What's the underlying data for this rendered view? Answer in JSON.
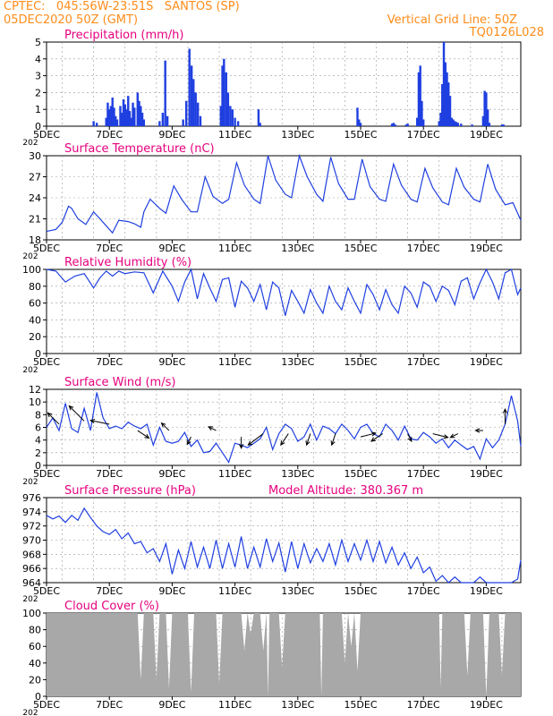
{
  "header": {
    "line1": "CPTEC:   045:56W-23:51S   SANTOS (SP)",
    "line2": "05DEC2020 50Z (GMT)",
    "grid_line": "Vertical Grid Line: 50Z",
    "code": "TQ0126L028"
  },
  "model_altitude": "Model Altitude: 380.367 m",
  "colors": {
    "header": "#ff8c1a",
    "title": "#e6007e",
    "line": "#1f3fe0",
    "wind_arrow": "#000000",
    "cloud": "#a8a8a8",
    "grid": "#999999"
  },
  "x_axis": {
    "range_days": [
      0,
      15.1
    ],
    "tick_positions": [
      0,
      2,
      4,
      6,
      8,
      10,
      12,
      14
    ],
    "tick_labels": [
      "5DEC",
      "7DEC",
      "9DEC",
      "11DEC",
      "13DEC",
      "15DEC",
      "17DEC",
      "19DEC"
    ],
    "cut_label": "202"
  },
  "chart_data": [
    {
      "type": "bar",
      "title": "Precipitation (mm/h)",
      "ylim": [
        0,
        5
      ],
      "yticks": [
        "0",
        "1",
        "2",
        "3",
        "4",
        "5"
      ],
      "events": [
        {
          "x": 1.5,
          "v": 0.3
        },
        {
          "x": 1.6,
          "v": 0.2
        },
        {
          "x": 1.9,
          "v": 0.5
        },
        {
          "x": 1.95,
          "v": 1.4
        },
        {
          "x": 2.0,
          "v": 1.0
        },
        {
          "x": 2.05,
          "v": 1.2
        },
        {
          "x": 2.1,
          "v": 1.7
        },
        {
          "x": 2.15,
          "v": 1.1
        },
        {
          "x": 2.2,
          "v": 0.6
        },
        {
          "x": 2.25,
          "v": 0.4
        },
        {
          "x": 2.35,
          "v": 1.2
        },
        {
          "x": 2.4,
          "v": 0.8
        },
        {
          "x": 2.45,
          "v": 1.6
        },
        {
          "x": 2.5,
          "v": 1.3
        },
        {
          "x": 2.55,
          "v": 1.0
        },
        {
          "x": 2.6,
          "v": 1.8
        },
        {
          "x": 2.65,
          "v": 0.9
        },
        {
          "x": 2.7,
          "v": 0.5
        },
        {
          "x": 2.75,
          "v": 1.4
        },
        {
          "x": 2.8,
          "v": 1.1
        },
        {
          "x": 2.9,
          "v": 2.0
        },
        {
          "x": 2.95,
          "v": 1.5
        },
        {
          "x": 3.0,
          "v": 1.2
        },
        {
          "x": 3.05,
          "v": 0.8
        },
        {
          "x": 3.1,
          "v": 0.4
        },
        {
          "x": 3.6,
          "v": 0.3
        },
        {
          "x": 3.7,
          "v": 0.8
        },
        {
          "x": 3.78,
          "v": 3.9
        },
        {
          "x": 3.85,
          "v": 0.6
        },
        {
          "x": 4.35,
          "v": 0.4
        },
        {
          "x": 4.45,
          "v": 1.5
        },
        {
          "x": 4.55,
          "v": 4.6
        },
        {
          "x": 4.62,
          "v": 3.6
        },
        {
          "x": 4.68,
          "v": 2.8
        },
        {
          "x": 4.75,
          "v": 2.0
        },
        {
          "x": 4.82,
          "v": 1.4
        },
        {
          "x": 4.9,
          "v": 0.6
        },
        {
          "x": 5.55,
          "v": 1.2
        },
        {
          "x": 5.6,
          "v": 3.6
        },
        {
          "x": 5.65,
          "v": 4.0
        },
        {
          "x": 5.72,
          "v": 3.2
        },
        {
          "x": 5.78,
          "v": 2.0
        },
        {
          "x": 5.85,
          "v": 1.2
        },
        {
          "x": 5.92,
          "v": 1.0
        },
        {
          "x": 6.0,
          "v": 0.5
        },
        {
          "x": 6.1,
          "v": 0.3
        },
        {
          "x": 6.75,
          "v": 1.0
        },
        {
          "x": 6.8,
          "v": 0.2
        },
        {
          "x": 9.9,
          "v": 1.1
        },
        {
          "x": 9.95,
          "v": 0.4
        },
        {
          "x": 10.0,
          "v": 0.2
        },
        {
          "x": 11.0,
          "v": 0.15
        },
        {
          "x": 11.05,
          "v": 0.2
        },
        {
          "x": 11.1,
          "v": 0.1
        },
        {
          "x": 11.45,
          "v": 0.1
        },
        {
          "x": 11.5,
          "v": 0.15
        },
        {
          "x": 11.8,
          "v": 0.5
        },
        {
          "x": 11.85,
          "v": 3.2
        },
        {
          "x": 11.9,
          "v": 3.6
        },
        {
          "x": 11.95,
          "v": 1.5
        },
        {
          "x": 12.0,
          "v": 0.4
        },
        {
          "x": 12.5,
          "v": 0.3
        },
        {
          "x": 12.55,
          "v": 0.8
        },
        {
          "x": 12.6,
          "v": 2.5
        },
        {
          "x": 12.65,
          "v": 5.0
        },
        {
          "x": 12.7,
          "v": 3.8
        },
        {
          "x": 12.75,
          "v": 3.2
        },
        {
          "x": 12.8,
          "v": 2.6
        },
        {
          "x": 12.85,
          "v": 1.8
        },
        {
          "x": 12.9,
          "v": 0.5
        },
        {
          "x": 12.95,
          "v": 0.4
        },
        {
          "x": 13.0,
          "v": 0.3
        },
        {
          "x": 13.05,
          "v": 0.25
        },
        {
          "x": 13.1,
          "v": 0.2
        },
        {
          "x": 13.2,
          "v": 0.15
        },
        {
          "x": 13.55,
          "v": 0.1
        },
        {
          "x": 13.9,
          "v": 0.6
        },
        {
          "x": 13.95,
          "v": 2.1
        },
        {
          "x": 14.0,
          "v": 2.0
        },
        {
          "x": 14.05,
          "v": 1.0
        },
        {
          "x": 14.1,
          "v": 0.2
        },
        {
          "x": 14.5,
          "v": 0.1
        },
        {
          "x": 14.55,
          "v": 0.1
        }
      ]
    },
    {
      "type": "line",
      "title": "Surface Temperature (nC)",
      "ylim": [
        18,
        30
      ],
      "yticks": [
        "18",
        "21",
        "24",
        "27",
        "30"
      ],
      "x": [
        0,
        0.3,
        0.5,
        0.7,
        0.8,
        1.0,
        1.25,
        1.5,
        1.7,
        1.9,
        2.1,
        2.3,
        2.6,
        2.8,
        3.0,
        3.1,
        3.3,
        3.6,
        3.8,
        4.05,
        4.3,
        4.6,
        4.8,
        5.05,
        5.3,
        5.6,
        5.8,
        6.05,
        6.3,
        6.6,
        6.8,
        7.05,
        7.3,
        7.6,
        7.8,
        8.05,
        8.3,
        8.6,
        8.8,
        9.05,
        9.3,
        9.6,
        9.8,
        10.05,
        10.3,
        10.6,
        10.8,
        11.05,
        11.3,
        11.6,
        11.8,
        12.05,
        12.3,
        12.6,
        12.8,
        13.05,
        13.3,
        13.6,
        13.8,
        14.05,
        14.3,
        14.6,
        14.85,
        15.1
      ],
      "y": [
        19.2,
        19.5,
        20.5,
        22.8,
        22.5,
        21.0,
        20.2,
        22.0,
        21.0,
        20.0,
        19.0,
        20.8,
        20.6,
        20.3,
        19.8,
        22.0,
        23.8,
        22.5,
        21.8,
        25.7,
        23.8,
        22.0,
        22.0,
        27.0,
        24.2,
        23.2,
        23.8,
        29.0,
        25.8,
        23.8,
        23.2,
        30.0,
        26.5,
        24.5,
        24.0,
        30.5,
        27.0,
        24.5,
        23.5,
        29.8,
        26.0,
        23.8,
        23.8,
        29.5,
        25.6,
        23.8,
        23.5,
        28.8,
        25.8,
        23.8,
        23.4,
        28.2,
        25.4,
        23.4,
        23.0,
        28.2,
        25.5,
        23.8,
        23.4,
        28.8,
        25.2,
        23.0,
        23.3,
        20.8
      ]
    },
    {
      "type": "line",
      "title": "Relative Humidity (%)",
      "ylim": [
        0,
        100
      ],
      "yticks": [
        "0",
        "20",
        "40",
        "60",
        "80",
        "100"
      ],
      "x": [
        0,
        0.3,
        0.6,
        0.9,
        1.2,
        1.5,
        1.7,
        1.9,
        2.1,
        2.3,
        2.5,
        2.8,
        3.1,
        3.4,
        3.7,
        4.0,
        4.2,
        4.4,
        4.6,
        4.8,
        5.0,
        5.2,
        5.4,
        5.6,
        5.8,
        6.0,
        6.2,
        6.4,
        6.6,
        6.8,
        7.0,
        7.2,
        7.4,
        7.6,
        7.8,
        8.0,
        8.2,
        8.4,
        8.6,
        8.8,
        9.0,
        9.2,
        9.4,
        9.6,
        9.8,
        10.0,
        10.2,
        10.4,
        10.6,
        10.8,
        11.0,
        11.2,
        11.4,
        11.6,
        11.8,
        12.0,
        12.2,
        12.4,
        12.6,
        12.8,
        13.0,
        13.2,
        13.4,
        13.6,
        13.8,
        14.0,
        14.2,
        14.4,
        14.6,
        14.8,
        15.0,
        15.1
      ],
      "y": [
        100,
        98,
        85,
        92,
        95,
        78,
        90,
        98,
        92,
        98,
        95,
        97,
        96,
        72,
        98,
        80,
        62,
        85,
        100,
        65,
        95,
        78,
        62,
        88,
        90,
        55,
        86,
        78,
        62,
        82,
        52,
        85,
        78,
        45,
        75,
        62,
        48,
        76,
        60,
        48,
        80,
        62,
        52,
        78,
        62,
        48,
        82,
        70,
        52,
        76,
        58,
        48,
        80,
        72,
        55,
        85,
        80,
        62,
        80,
        75,
        58,
        86,
        90,
        65,
        84,
        100,
        85,
        65,
        96,
        100,
        70,
        78
      ]
    },
    {
      "type": "line",
      "title": "Surface Wind (m/s)",
      "ylim": [
        0,
        12
      ],
      "yticks": [
        "0",
        "2",
        "4",
        "6",
        "8",
        "10",
        "12"
      ],
      "x": [
        0,
        0.2,
        0.4,
        0.6,
        0.8,
        1.0,
        1.2,
        1.4,
        1.6,
        1.8,
        2.0,
        2.2,
        2.4,
        2.6,
        2.8,
        3.0,
        3.2,
        3.4,
        3.6,
        3.8,
        4.0,
        4.2,
        4.4,
        4.6,
        4.8,
        5.0,
        5.2,
        5.4,
        5.6,
        5.8,
        6.0,
        6.2,
        6.4,
        6.6,
        6.8,
        7.0,
        7.2,
        7.4,
        7.6,
        7.8,
        8.0,
        8.2,
        8.4,
        8.6,
        8.8,
        9.0,
        9.2,
        9.4,
        9.6,
        9.8,
        10.0,
        10.2,
        10.4,
        10.6,
        10.8,
        11.0,
        11.2,
        11.4,
        11.6,
        11.8,
        12.0,
        12.2,
        12.4,
        12.6,
        12.8,
        13.0,
        13.2,
        13.4,
        13.6,
        13.8,
        14.0,
        14.2,
        14.4,
        14.6,
        14.8,
        15.0,
        15.1
      ],
      "y": [
        6.0,
        7.5,
        5.5,
        9.8,
        5.8,
        5.2,
        9.0,
        5.5,
        11.5,
        7.5,
        5.8,
        6.2,
        5.8,
        6.8,
        6.2,
        5.8,
        6.5,
        3.2,
        6.0,
        3.8,
        3.5,
        3.8,
        5.2,
        3.0,
        4.0,
        2.0,
        2.2,
        3.5,
        2.0,
        0.5,
        3.5,
        3.2,
        2.8,
        3.5,
        4.2,
        6.0,
        2.5,
        5.0,
        6.5,
        5.8,
        3.8,
        4.5,
        6.5,
        4.0,
        6.2,
        5.8,
        5.0,
        6.5,
        5.5,
        4.2,
        6.0,
        6.5,
        5.0,
        4.5,
        6.5,
        5.5,
        4.0,
        6.2,
        4.2,
        4.0,
        5.2,
        4.5,
        3.5,
        4.2,
        2.8,
        4.0,
        3.2,
        2.5,
        3.0,
        1.0,
        4.2,
        2.8,
        4.0,
        6.5,
        11.0,
        7.0,
        3.0
      ]
    },
    {
      "type": "line",
      "title": "Surface Pressure (hPa)",
      "ylim": [
        964,
        976
      ],
      "yticks": [
        "964",
        "966",
        "968",
        "970",
        "972",
        "974",
        "976"
      ],
      "x": [
        0,
        0.2,
        0.4,
        0.6,
        0.8,
        1.0,
        1.2,
        1.4,
        1.6,
        1.8,
        2.0,
        2.2,
        2.4,
        2.6,
        2.8,
        3.0,
        3.2,
        3.4,
        3.6,
        3.8,
        4.0,
        4.2,
        4.4,
        4.6,
        4.8,
        5.0,
        5.2,
        5.4,
        5.6,
        5.8,
        6.0,
        6.2,
        6.4,
        6.6,
        6.8,
        7.0,
        7.2,
        7.4,
        7.6,
        7.8,
        8.0,
        8.2,
        8.4,
        8.6,
        8.8,
        9.0,
        9.2,
        9.4,
        9.6,
        9.8,
        10.0,
        10.2,
        10.4,
        10.6,
        10.8,
        11.0,
        11.2,
        11.4,
        11.6,
        11.8,
        12.0,
        12.2,
        12.4,
        12.6,
        12.8,
        13.0,
        13.2,
        13.4,
        13.6,
        13.8,
        14.0,
        14.2,
        14.4,
        14.6,
        14.8,
        15.0,
        15.1
      ],
      "y": [
        973.5,
        973.0,
        973.4,
        972.5,
        973.5,
        972.8,
        974.5,
        973.2,
        972.0,
        971.2,
        970.8,
        971.5,
        970.2,
        971.0,
        969.5,
        969.8,
        968.2,
        968.8,
        967.0,
        969.5,
        965.2,
        968.6,
        966.0,
        969.8,
        966.2,
        969.0,
        966.0,
        970.0,
        966.0,
        969.5,
        966.2,
        970.5,
        966.0,
        969.0,
        966.2,
        970.2,
        967.0,
        969.6,
        965.5,
        969.8,
        966.0,
        969.5,
        966.8,
        968.8,
        967.0,
        969.5,
        966.5,
        970.0,
        967.0,
        969.5,
        967.2,
        970.0,
        967.0,
        969.8,
        966.8,
        969.0,
        966.5,
        968.2,
        966.0,
        967.6,
        965.4,
        966.2,
        964.2,
        965.0,
        963.6,
        964.8,
        963.8,
        963.0,
        963.4,
        964.8,
        963.2,
        963.2,
        963.0,
        963.0,
        963.6,
        964.5,
        967.2
      ]
    },
    {
      "type": "area",
      "title": "Cloud Cover (%)",
      "ylim": [
        0,
        100
      ],
      "yticks": [
        "0",
        "20",
        "40",
        "60",
        "80",
        "100"
      ],
      "x": [
        0,
        2.9,
        3.0,
        3.1,
        3.4,
        3.5,
        3.6,
        3.8,
        3.9,
        4.0,
        4.5,
        4.6,
        4.7,
        5.4,
        5.5,
        5.6,
        6.2,
        6.3,
        6.4,
        6.5,
        6.6,
        6.8,
        6.9,
        7.0,
        7.05,
        7.1,
        7.4,
        7.5,
        7.6,
        8.7,
        8.75,
        8.8,
        9.4,
        9.5,
        9.6,
        9.7,
        9.8,
        9.9,
        10.0,
        12.5,
        12.55,
        12.6,
        13.3,
        13.4,
        13.5,
        13.9,
        14.0,
        14.1,
        14.4,
        14.5,
        14.6,
        15.1
      ],
      "y": [
        100,
        100,
        20,
        100,
        100,
        20,
        100,
        100,
        10,
        100,
        100,
        5,
        100,
        100,
        15,
        100,
        100,
        55,
        100,
        75,
        100,
        100,
        55,
        100,
        0,
        100,
        100,
        35,
        100,
        100,
        0,
        100,
        100,
        40,
        100,
        60,
        100,
        30,
        100,
        100,
        10,
        100,
        100,
        25,
        100,
        100,
        0,
        100,
        100,
        25,
        100,
        100
      ]
    }
  ],
  "wind_vectors": {
    "x": [
      0.4,
      1.2,
      2.0,
      2.9,
      3.9,
      4.6,
      5.4,
      6.2,
      6.9,
      7.7,
      8.4,
      9.2,
      10.0,
      10.7,
      11.5,
      12.3,
      13.1,
      13.9,
      14.6
    ],
    "y": [
      6.5,
      7.0,
      6.5,
      5.5,
      5.5,
      4.5,
      5.5,
      4.5,
      5.0,
      5.0,
      5.0,
      5.0,
      4.5,
      5.0,
      5.0,
      5.0,
      5.0,
      5.5,
      6.5
    ],
    "u": [
      -3,
      -4,
      -5,
      3,
      -2,
      -1,
      -2,
      0,
      -4,
      -2,
      -1,
      -1,
      4,
      -3,
      1,
      4,
      -2,
      -2,
      0
    ],
    "v": [
      3,
      4,
      1,
      -2,
      2,
      -2,
      1,
      -3,
      -3,
      -3,
      -3,
      -3,
      1,
      -2,
      -2,
      -1,
      -1,
      0,
      4
    ]
  }
}
